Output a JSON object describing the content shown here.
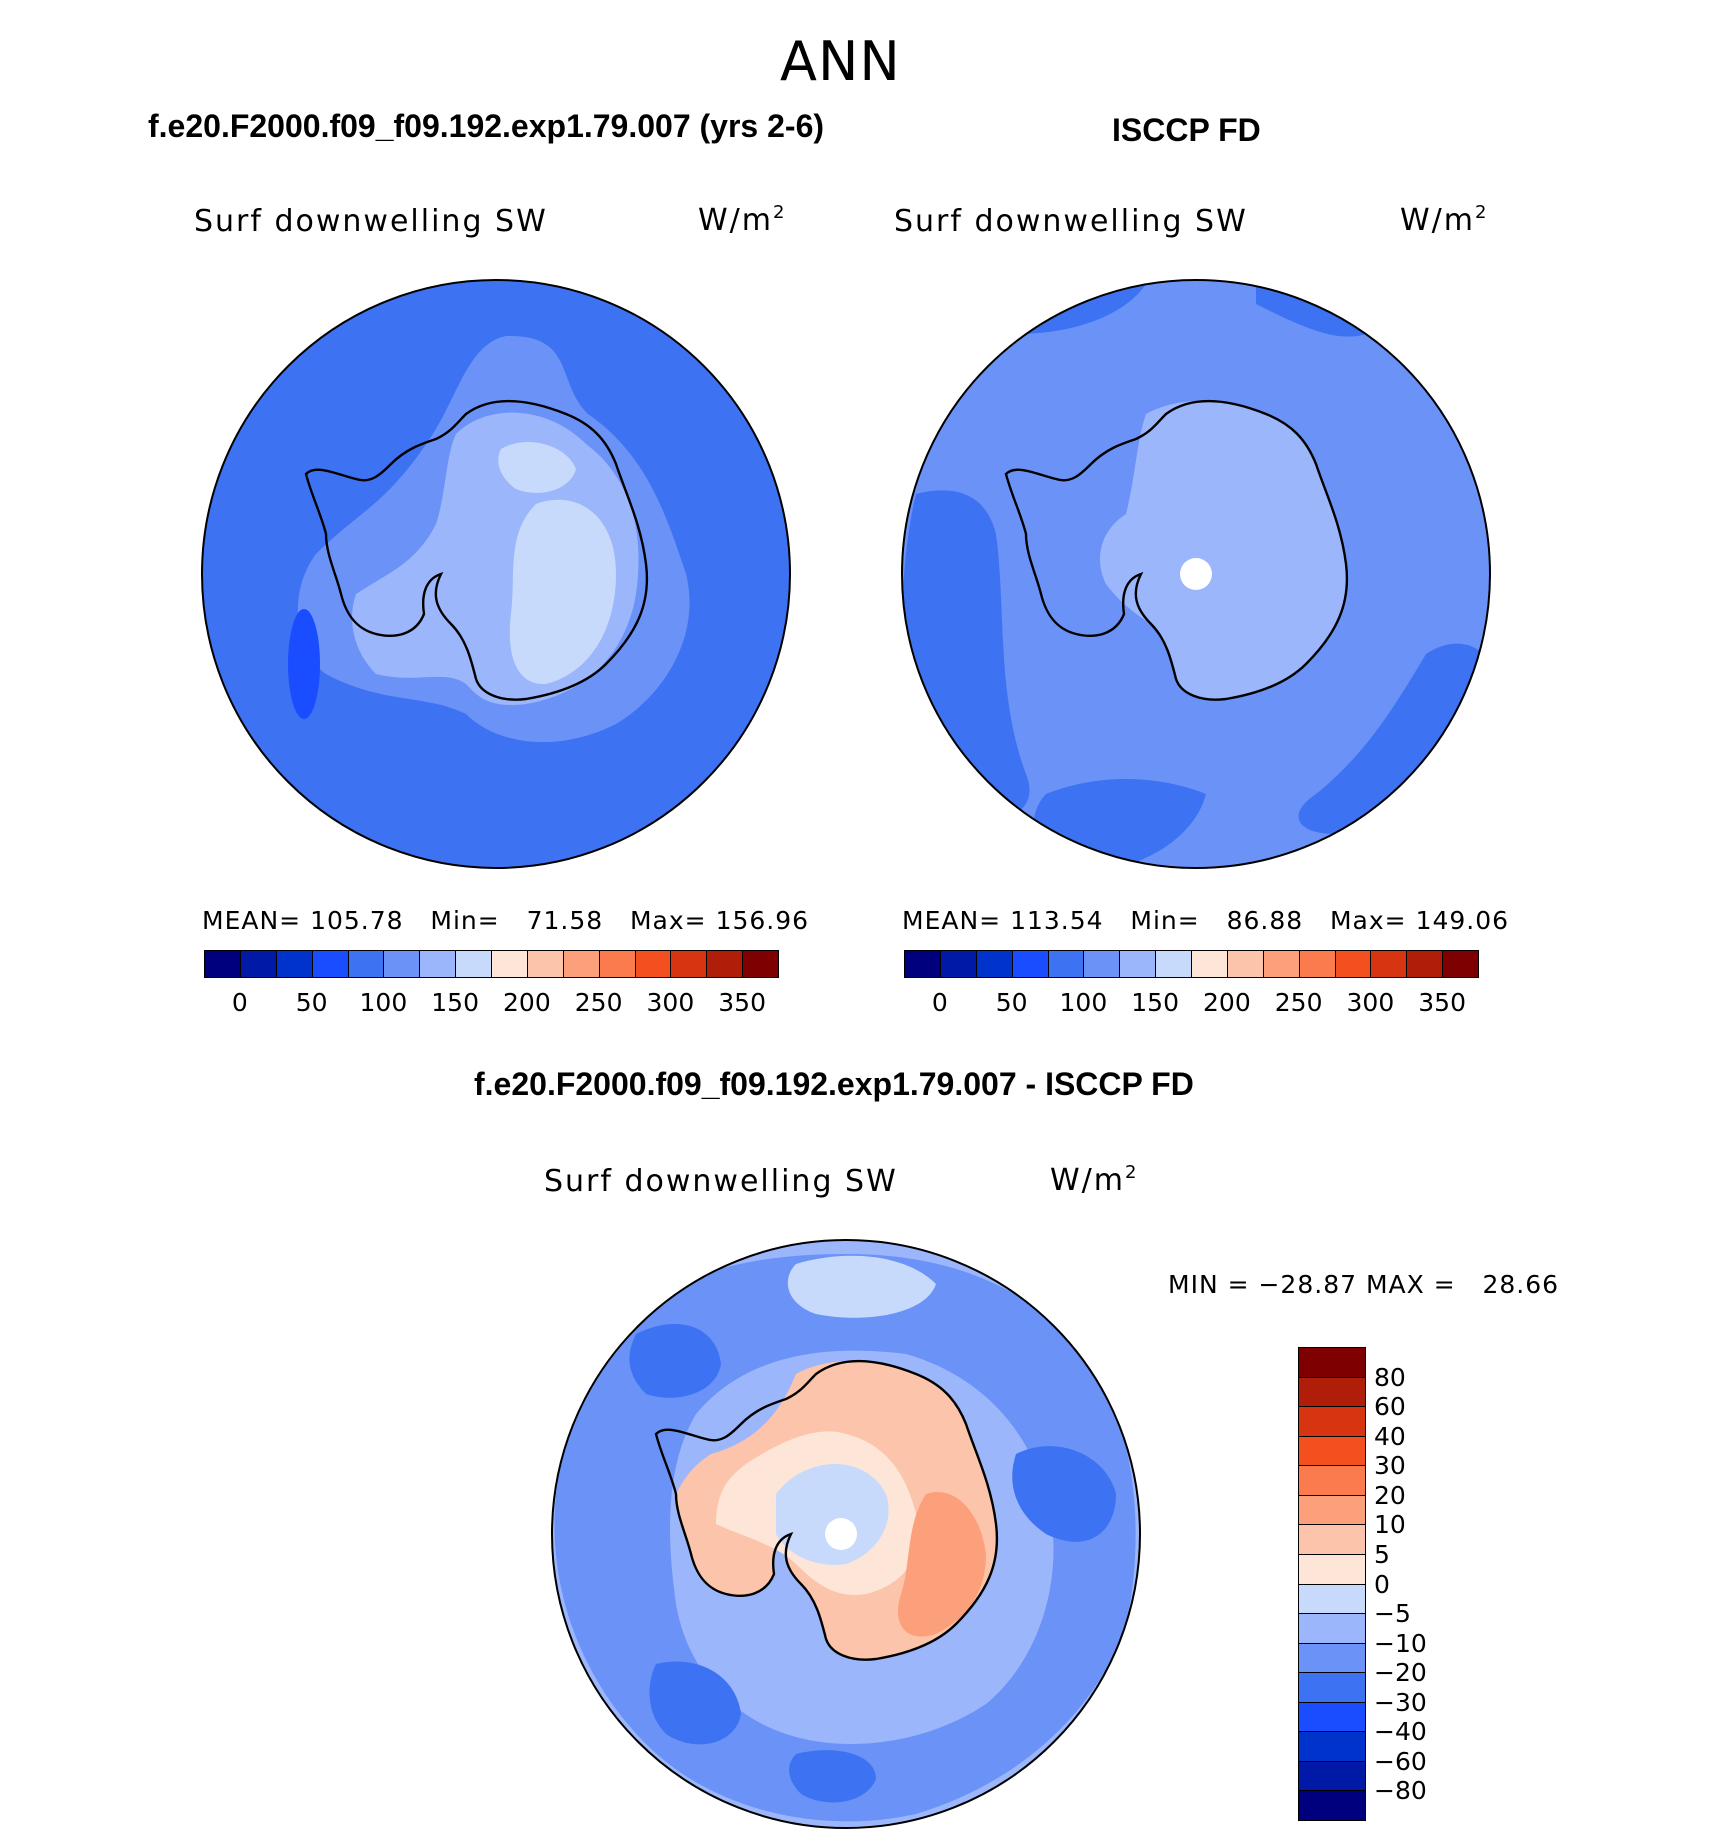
{
  "figure": {
    "main_title": "ANN",
    "diff_title": "f.e20.F2000.f09_f09.192.exp1.79.007 - ISCCP FD"
  },
  "panels": [
    {
      "case_title": "f.e20.F2000.f09_f09.192.exp1.79.007 (yrs 2-6)",
      "variable": "Surf downwelling SW",
      "units_base": "W/m",
      "units_exp": "2",
      "mean_label": "MEAN=",
      "mean_value": "105.78",
      "min_label": "Min=",
      "min_value": "71.58",
      "max_label": "Max=",
      "max_value": "156.96"
    },
    {
      "case_title": "ISCCP FD",
      "variable": "Surf downwelling SW",
      "units_base": "W/m",
      "units_exp": "2",
      "mean_label": "MEAN=",
      "mean_value": "113.54",
      "min_label": "Min=",
      "min_value": "86.88",
      "max_label": "Max=",
      "max_value": "149.06"
    },
    {
      "variable": "Surf downwelling SW",
      "units_base": "W/m",
      "units_exp": "2",
      "minmax_text": "MIN = −28.87 MAX =   28.66"
    }
  ],
  "colorbar_abs": {
    "colors": [
      "#00007f",
      "#0019a6",
      "#0033cc",
      "#1a4dff",
      "#3d73f2",
      "#6b93f7",
      "#9bb6fa",
      "#c7dafc",
      "#fde6d8",
      "#fcc4aa",
      "#fca07b",
      "#fb7a4e",
      "#f4501f",
      "#d73412",
      "#b01d08",
      "#7f0000"
    ],
    "ticks": [
      "0",
      "50",
      "100",
      "150",
      "200",
      "250",
      "300",
      "350"
    ]
  },
  "colorbar_diff": {
    "colors": [
      "#7f0000",
      "#b01d08",
      "#d73412",
      "#f4501f",
      "#fb7a4e",
      "#fca07b",
      "#fcc4aa",
      "#fde6d8",
      "#c7dafc",
      "#9bb6fa",
      "#6b93f7",
      "#3d73f2",
      "#1a4dff",
      "#0033cc",
      "#0019a6",
      "#00007f"
    ],
    "ticks": [
      "80",
      "60",
      "40",
      "30",
      "20",
      "10",
      "5",
      "0",
      "−5",
      "−10",
      "−20",
      "−30",
      "−40",
      "−60",
      "−80"
    ]
  },
  "map_colors": {
    "ocean_model": "#3d73f2",
    "ocean_model_light": "#6b93f7",
    "ocean_model_dark": "#1a4dff",
    "ice_model": "#9bb6fa",
    "ice_model_light": "#c7dafc",
    "ocean_obs": "#6b93f7",
    "ocean_obs_dark": "#3d73f2",
    "ice_obs": "#9bb6fa",
    "diff_ocean": "#9bb6fa",
    "diff_ocean_dark": "#6b93f7",
    "diff_ocean_darker": "#3d73f2",
    "diff_ice_pos": "#fcc4aa",
    "diff_ice_pos_light": "#fde6d8",
    "diff_ice_pos_strong": "#fca07b",
    "diff_ice_center": "#c7dafc"
  }
}
